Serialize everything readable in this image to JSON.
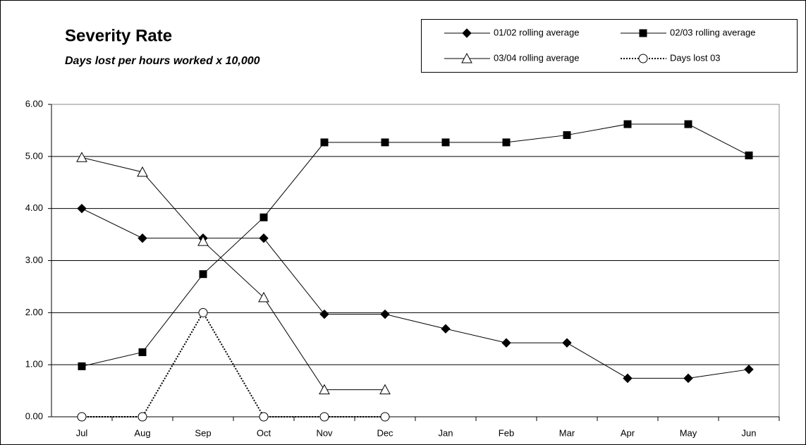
{
  "chart_data": {
    "type": "line",
    "title": "Severity Rate",
    "subtitle": "Days lost per hours worked x 10,000",
    "categories": [
      "Jul",
      "Aug",
      "Sep",
      "Oct",
      "Nov",
      "Dec",
      "Jan",
      "Feb",
      "Mar",
      "Apr",
      "May",
      "Jun"
    ],
    "series": [
      {
        "name": "01/02 rolling average",
        "color": "#000000",
        "marker": "diamond",
        "dash": "solid",
        "values": [
          4.0,
          3.43,
          3.43,
          3.43,
          1.97,
          1.97,
          1.69,
          1.42,
          1.42,
          0.74,
          0.74,
          0.91
        ]
      },
      {
        "name": "02/03 rolling average",
        "color": "#000000",
        "marker": "square",
        "dash": "solid",
        "values": [
          0.97,
          1.24,
          2.74,
          3.83,
          5.27,
          5.27,
          5.27,
          5.27,
          5.41,
          5.62,
          5.62,
          5.02
        ]
      },
      {
        "name": "03/04 rolling average",
        "color": "#000000",
        "marker": "triangle",
        "dash": "solid",
        "values": [
          4.98,
          4.7,
          3.37,
          2.29,
          0.52,
          0.52,
          null,
          null,
          null,
          null,
          null,
          null
        ]
      },
      {
        "name": "Days lost 03",
        "color": "#000000",
        "marker": "circle",
        "dash": "dotted",
        "values": [
          0,
          0,
          2,
          0,
          0,
          0,
          null,
          null,
          null,
          null,
          null,
          null
        ]
      }
    ],
    "ylim": [
      0,
      6
    ],
    "yticks": [
      {
        "value": 0,
        "label": "0.00"
      },
      {
        "value": 1,
        "label": "1.00"
      },
      {
        "value": 2,
        "label": "2.00"
      },
      {
        "value": 3,
        "label": "3.00"
      },
      {
        "value": 4,
        "label": "4.00"
      },
      {
        "value": 5,
        "label": "5.00"
      },
      {
        "value": 6,
        "label": "6.00"
      }
    ],
    "grid": true,
    "legend": "top-right"
  }
}
